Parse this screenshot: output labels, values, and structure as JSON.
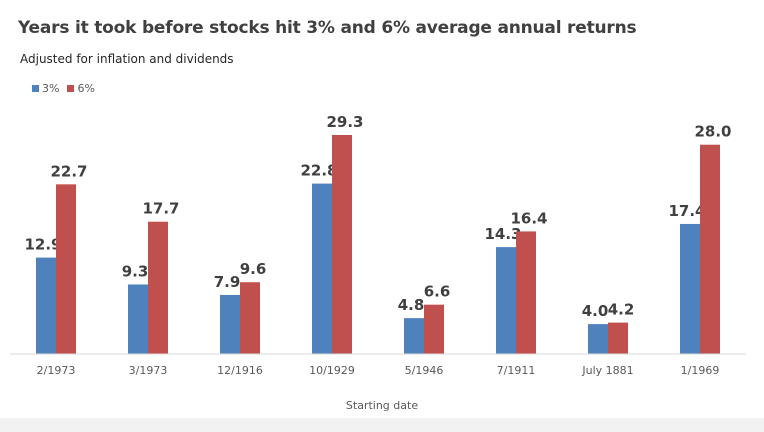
{
  "colors": {
    "series_3": "#4f81bd",
    "series_6": "#c0504d",
    "axis": "#d9d9d9"
  },
  "chart_data": {
    "type": "bar",
    "title": "Years it took before stocks hit 3% and 6% average annual returns",
    "subtitle": "Adjusted for inflation and dividends",
    "xlabel": "Starting date",
    "ylabel": "",
    "ylim": [
      0,
      32
    ],
    "grid": false,
    "legend": "top-left",
    "categories": [
      "2/1973",
      "3/1973",
      "12/1916",
      "10/1929",
      "5/1946",
      "7/1911",
      "July 1881",
      "1/1969"
    ],
    "series": [
      {
        "name": "3%",
        "values": [
          12.9,
          9.3,
          7.9,
          22.8,
          4.8,
          14.3,
          4.0,
          17.4
        ],
        "labels": [
          "12.9",
          "9.3",
          "7.9",
          "22.8",
          "4.8",
          "14.3",
          "4.0",
          "17.4"
        ]
      },
      {
        "name": "6%",
        "values": [
          22.7,
          17.7,
          9.6,
          29.3,
          6.6,
          16.4,
          4.2,
          28.0
        ],
        "labels": [
          "22.7",
          "17.7",
          "9.6",
          "29.3",
          "6.6",
          "16.4",
          "4.2",
          "28.0"
        ]
      }
    ]
  }
}
